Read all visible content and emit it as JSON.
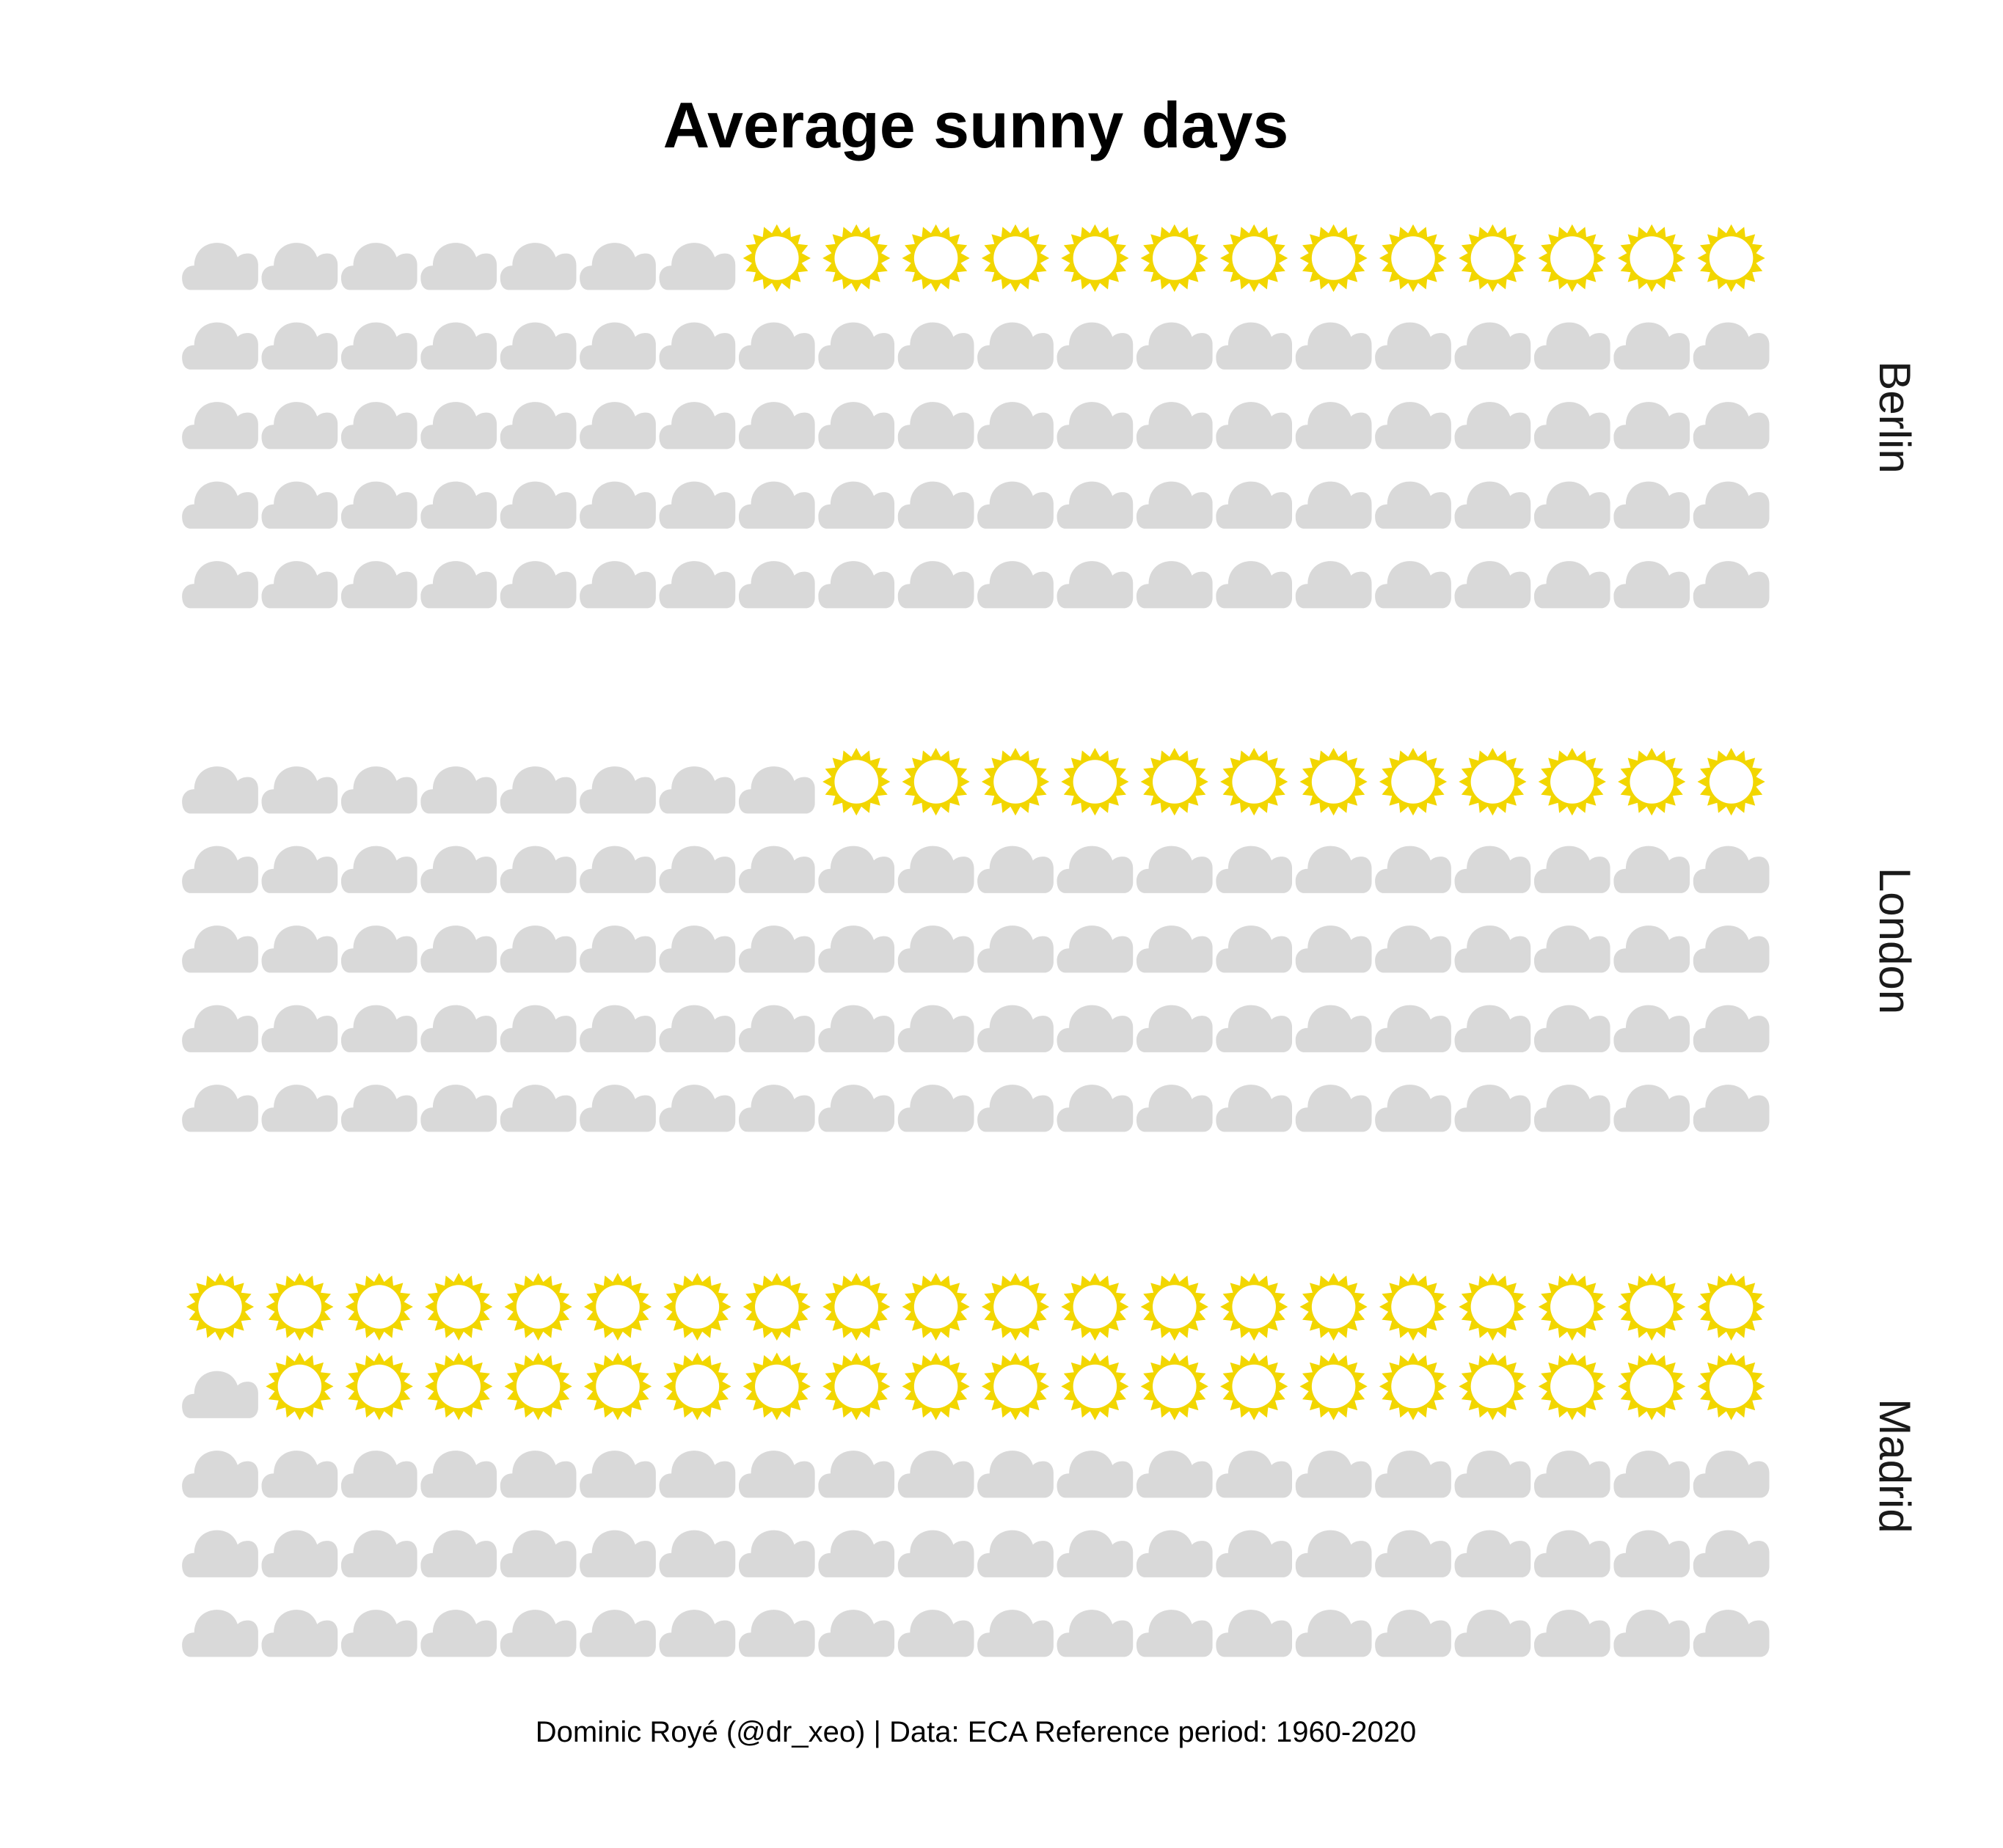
{
  "chart_data": {
    "type": "waffle",
    "title": "Average sunny days",
    "caption": "Dominic Royé (@dr_xeo) | Data: ECA Reference period: 1960-2020",
    "columns": 20,
    "rows": 5,
    "categories": [
      "Berlin",
      "London",
      "Madrid"
    ],
    "series": [
      {
        "name": "Berlin",
        "sunny": 13,
        "cloudy": 87
      },
      {
        "name": "London",
        "sunny": 12,
        "cloudy": 88
      },
      {
        "name": "Madrid",
        "sunny": 39,
        "cloudy": 61
      }
    ],
    "icons": {
      "sunny": "sun-icon",
      "cloudy": "cloud-icon"
    },
    "colors": {
      "sun": "#F2D600",
      "cloud": "#D9D9D9"
    }
  }
}
